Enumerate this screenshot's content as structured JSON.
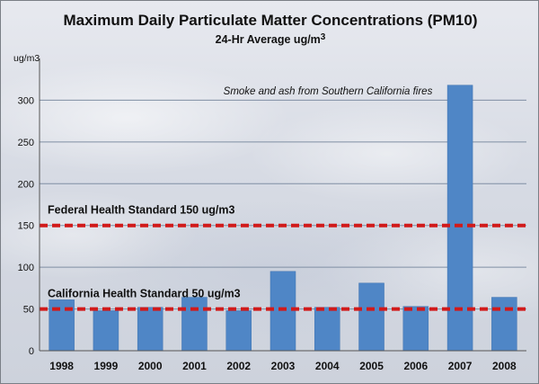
{
  "chart_data": {
    "type": "bar",
    "title": "Maximum Daily Particulate Matter Concentrations (PM10)",
    "subtitle_main": "24-Hr Average ug/m",
    "subtitle_sup": "3",
    "ylabel": "ug/m3",
    "categories": [
      "1998",
      "1999",
      "2000",
      "2001",
      "2002",
      "2003",
      "2004",
      "2005",
      "2006",
      "2007",
      "2008"
    ],
    "values": [
      61,
      48,
      52,
      64,
      48,
      95,
      52,
      81,
      53,
      318,
      64
    ],
    "yticks": [
      0,
      50,
      100,
      150,
      200,
      250,
      300
    ],
    "ylim": [
      0,
      350
    ],
    "grid": true,
    "reference_lines": [
      {
        "label": "Federal Health Standard 150 ug/m3",
        "value": 150
      },
      {
        "label": "California Health Standard 50 ug/m3",
        "value": 50
      }
    ],
    "annotation": "Smoke and ash from Southern California fires",
    "colors": {
      "bar": "#4f86c6",
      "bar_edge": "#3f73b0",
      "reference": "#d11a1a",
      "grid": "#7f8ea3",
      "axis": "#555555"
    }
  }
}
